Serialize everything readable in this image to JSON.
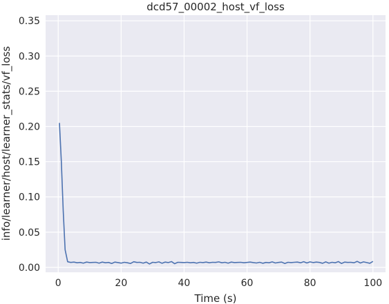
{
  "chart_data": {
    "type": "line",
    "title": "dcd57_00002_host_vf_loss",
    "xlabel": "Time (s)",
    "ylabel": "info/learner/host/learner_stats/vf_loss",
    "xlim": [
      -4,
      104
    ],
    "ylim": [
      -0.007,
      0.358
    ],
    "xticks": [
      0,
      20,
      40,
      60,
      80,
      100
    ],
    "xtick_labels": [
      "0",
      "20",
      "40",
      "60",
      "80",
      "100"
    ],
    "yticks": [
      0.0,
      0.05,
      0.1,
      0.15,
      0.2,
      0.25,
      0.3,
      0.35
    ],
    "ytick_labels": [
      "0.00",
      "0.05",
      "0.10",
      "0.15",
      "0.20",
      "0.25",
      "0.30",
      "0.35"
    ],
    "grid": true,
    "background": "#eaeaf2",
    "series": [
      {
        "color": "#4c72b0",
        "x": [
          0.4,
          1.0,
          1.6,
          2.2,
          3.0,
          4.0,
          5.0,
          6.0,
          7.0,
          8.0,
          9.0,
          10.0,
          11.0,
          12.0,
          13.0,
          14.0,
          15.0,
          16.0,
          17.0,
          18.0,
          19.0,
          20.0,
          21.0,
          22.0,
          23.0,
          24.0,
          25.0,
          26.0,
          27.0,
          28.0,
          29.0,
          30.0,
          31.0,
          32.0,
          33.0,
          34.0,
          35.0,
          36.0,
          37.0,
          38.0,
          39.0,
          40.0,
          41.0,
          42.0,
          43.0,
          44.0,
          45.0,
          46.0,
          47.0,
          48.0,
          49.0,
          50.0,
          51.0,
          52.0,
          53.0,
          54.0,
          55.0,
          56.0,
          57.0,
          58.0,
          59.0,
          60.0,
          61.0,
          62.0,
          63.0,
          64.0,
          65.0,
          66.0,
          67.0,
          68.0,
          69.0,
          70.0,
          71.0,
          72.0,
          73.0,
          74.0,
          75.0,
          76.0,
          77.0,
          78.0,
          79.0,
          80.0,
          81.0,
          82.0,
          83.0,
          84.0,
          85.0,
          86.0,
          87.0,
          88.0,
          89.0,
          90.0,
          91.0,
          92.0,
          93.0,
          94.0,
          95.0,
          96.0,
          97.0,
          98.0,
          99.0,
          100.0
        ],
        "y": [
          0.205,
          0.15,
          0.08,
          0.025,
          0.008,
          0.007,
          0.0075,
          0.0065,
          0.007,
          0.006,
          0.0075,
          0.0068,
          0.007,
          0.0072,
          0.006,
          0.0075,
          0.0065,
          0.007,
          0.0055,
          0.0075,
          0.0068,
          0.006,
          0.0072,
          0.0065,
          0.0055,
          0.008,
          0.007,
          0.0072,
          0.006,
          0.0075,
          0.0048,
          0.0072,
          0.0068,
          0.0078,
          0.0058,
          0.0075,
          0.0068,
          0.0082,
          0.0052,
          0.0072,
          0.007,
          0.0068,
          0.0072,
          0.0065,
          0.007,
          0.006,
          0.0072,
          0.0068,
          0.0075,
          0.0065,
          0.0072,
          0.007,
          0.0078,
          0.0065,
          0.0072,
          0.006,
          0.0075,
          0.0068,
          0.007,
          0.0072,
          0.0065,
          0.007,
          0.0075,
          0.0068,
          0.0062,
          0.0072,
          0.0058,
          0.007,
          0.0065,
          0.0078,
          0.0062,
          0.007,
          0.0075,
          0.0055,
          0.0072,
          0.0068,
          0.0072,
          0.0075,
          0.0065,
          0.008,
          0.0062,
          0.0078,
          0.0068,
          0.0075,
          0.007,
          0.0058,
          0.0078,
          0.006,
          0.0072,
          0.0065,
          0.0082,
          0.0055,
          0.0075,
          0.007,
          0.0072,
          0.0065,
          0.0085,
          0.0062,
          0.0078,
          0.0068,
          0.0058,
          0.0085
        ]
      }
    ]
  }
}
